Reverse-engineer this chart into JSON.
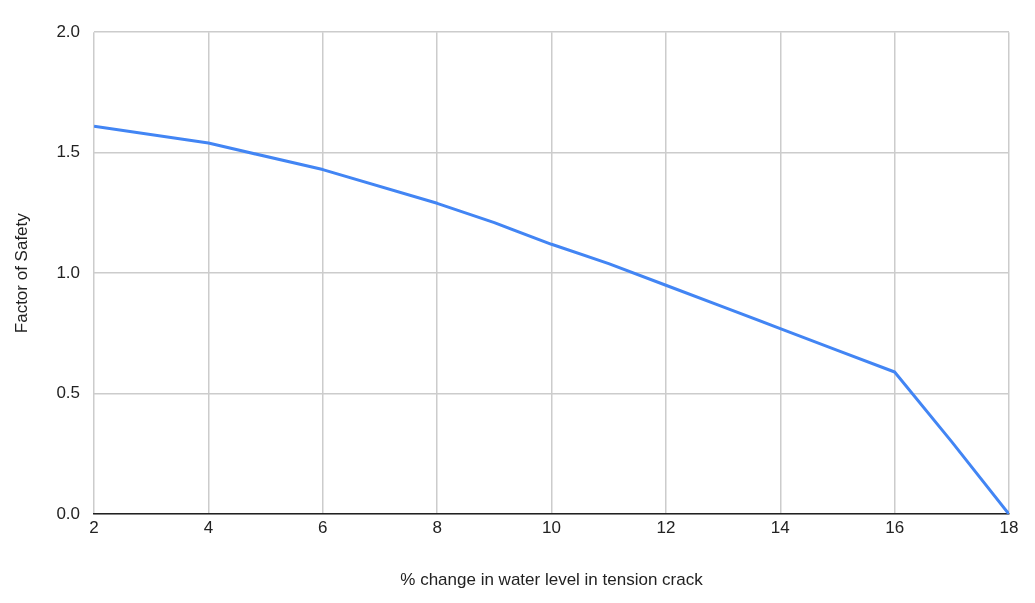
{
  "chart_data": {
    "type": "line",
    "xlabel": "% change in water level in tension crack",
    "ylabel": "Factor of Safety",
    "x": [
      2,
      4,
      6,
      8,
      9,
      10,
      11,
      12,
      13,
      14,
      15,
      16,
      17,
      18
    ],
    "series": [
      {
        "color": "#4285f4",
        "values": [
          1.61,
          1.54,
          1.43,
          1.29,
          1.21,
          1.12,
          1.04,
          0.95,
          0.86,
          0.77,
          0.68,
          0.59,
          0.3,
          0
        ]
      }
    ],
    "xlim": [
      2,
      18
    ],
    "xticks": [
      2,
      4,
      6,
      8,
      10,
      12,
      14,
      16,
      18
    ],
    "ylim": [
      0,
      2
    ],
    "yticks": [
      {
        "value": 0,
        "label": "0.0"
      },
      {
        "value": 0.5,
        "label": "0.5"
      },
      {
        "value": 1,
        "label": "1.0"
      },
      {
        "value": 1.5,
        "label": "1.5"
      },
      {
        "value": 2,
        "label": "2.0"
      }
    ],
    "grid": true,
    "legend": false,
    "marker": "none",
    "line_style": "solid"
  }
}
